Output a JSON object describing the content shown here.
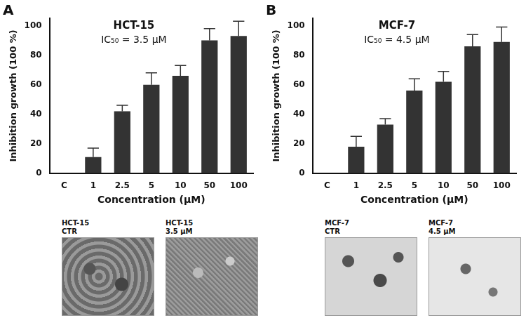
{
  "chart_data": [
    {
      "type": "bar",
      "panel": "A",
      "title": "HCT-15",
      "subtitle": "IC₅₀ = 3.5 μM",
      "x_label": "Concentration (μM)",
      "y_label": "Inhibition growth (100 %)",
      "categories": [
        "C",
        "1",
        "2.5",
        "5",
        "10",
        "50",
        "100"
      ],
      "values": [
        0,
        11,
        42,
        60,
        66,
        90,
        93
      ],
      "errors": [
        0,
        6,
        4,
        8,
        7,
        8,
        10
      ],
      "color": "#333333",
      "ylim": [
        0,
        105
      ],
      "yticks": [
        0,
        20,
        40,
        60,
        80,
        100
      ],
      "grid": false
    },
    {
      "type": "bar",
      "panel": "B",
      "title": "MCF-7",
      "subtitle": "IC₅₀ = 4.5 μM",
      "x_label": "Concentration (μM)",
      "y_label": "Inhibition growth (100 %)",
      "categories": [
        "C",
        "1",
        "2.5",
        "5",
        "10",
        "50",
        "100"
      ],
      "values": [
        0,
        18,
        33,
        56,
        62,
        86,
        89
      ],
      "errors": [
        0,
        7,
        4,
        8,
        7,
        8,
        10
      ],
      "color": "#333333",
      "ylim": [
        0,
        105
      ],
      "yticks": [
        0,
        20,
        40,
        60,
        80,
        100
      ],
      "grid": false
    }
  ],
  "micrographs": [
    [
      {
        "cell_line": "HCT-15",
        "condition": "CTR"
      },
      {
        "cell_line": "HCT-15",
        "condition": "3.5 μM"
      }
    ],
    [
      {
        "cell_line": "MCF-7",
        "condition": "CTR"
      },
      {
        "cell_line": "MCF-7",
        "condition": "4.5 μM"
      }
    ]
  ]
}
